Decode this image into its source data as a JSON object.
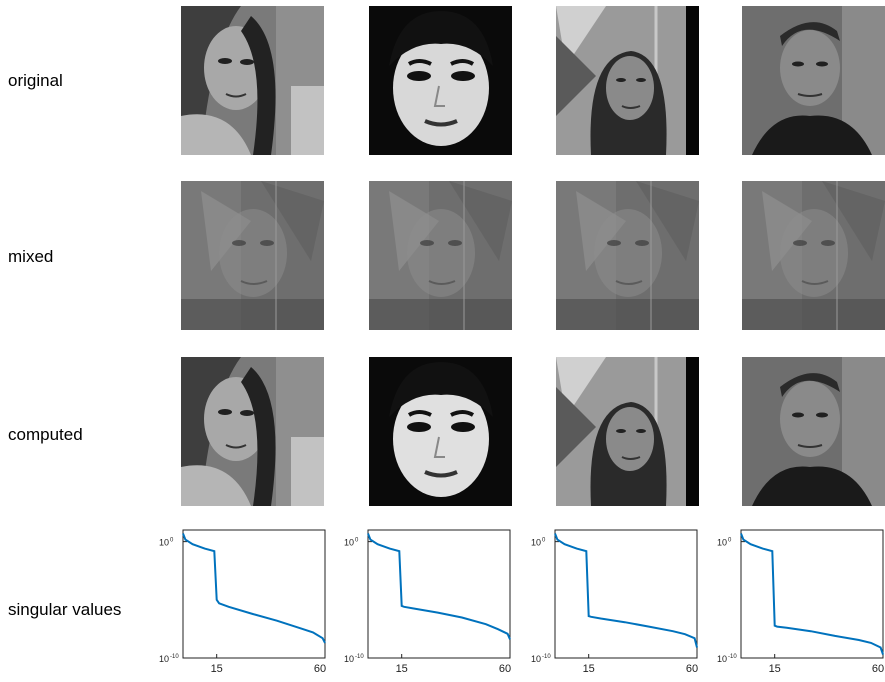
{
  "row_labels": {
    "original": "original",
    "mixed": "mixed",
    "computed": "computed",
    "singular_values": "singular values"
  },
  "images": {
    "original": [
      {
        "subject": "woman with dark hair looking left",
        "tone": "gray"
      },
      {
        "subject": "woman with short dark hair and bangs",
        "tone": "high-contrast"
      },
      {
        "subject": "woman with long dark hair",
        "tone": "gray"
      },
      {
        "subject": "man in dark jacket",
        "tone": "gray"
      }
    ],
    "mixed": [
      {
        "subject": "blend of four faces",
        "tone": "gray"
      },
      {
        "subject": "blend of four faces",
        "tone": "gray"
      },
      {
        "subject": "blend of four faces",
        "tone": "gray"
      },
      {
        "subject": "blend of four faces",
        "tone": "gray"
      }
    ],
    "computed": [
      {
        "subject": "recovered woman with dark hair",
        "tone": "gray"
      },
      {
        "subject": "recovered woman with bangs",
        "tone": "high-contrast"
      },
      {
        "subject": "recovered woman with long hair",
        "tone": "gray"
      },
      {
        "subject": "recovered man",
        "tone": "gray"
      }
    ]
  },
  "chart_data": [
    {
      "type": "line",
      "yscale": "log",
      "grid": false,
      "xlim": [
        1,
        60
      ],
      "ylim": [
        1e-10,
        10
      ],
      "xticks": [
        "15",
        "60"
      ],
      "yticks": [
        "10^0",
        "10^-10"
      ],
      "color": "#0072BD",
      "x": [
        1,
        2,
        5,
        10,
        14,
        15,
        16,
        20,
        30,
        40,
        50,
        55,
        59,
        60
      ],
      "y": [
        5,
        1.5,
        0.6,
        0.25,
        0.15,
        1e-05,
        5e-06,
        2.5e-06,
        6e-07,
        1.6e-07,
        3.5e-08,
        1.6e-08,
        5e-09,
        2e-09
      ]
    },
    {
      "type": "line",
      "yscale": "log",
      "grid": false,
      "xlim": [
        1,
        60
      ],
      "ylim": [
        1e-10,
        10
      ],
      "xticks": [
        "15",
        "60"
      ],
      "yticks": [
        "10^0",
        "10^-10"
      ],
      "color": "#0072BD",
      "x": [
        1,
        2,
        5,
        10,
        14,
        15,
        16,
        20,
        30,
        40,
        50,
        55,
        59,
        60
      ],
      "y": [
        5,
        1.5,
        0.6,
        0.25,
        0.15,
        3e-06,
        2.5e-06,
        1.8e-06,
        8e-07,
        3e-07,
        8e-08,
        3e-08,
        1.2e-08,
        4e-09
      ]
    },
    {
      "type": "line",
      "yscale": "log",
      "grid": false,
      "xlim": [
        1,
        60
      ],
      "ylim": [
        1e-10,
        10
      ],
      "xticks": [
        "15",
        "60"
      ],
      "yticks": [
        "10^0",
        "10^-10"
      ],
      "color": "#0072BD",
      "x": [
        1,
        2,
        5,
        10,
        14,
        15,
        16,
        20,
        30,
        40,
        50,
        55,
        59,
        60
      ],
      "y": [
        5,
        1.5,
        0.6,
        0.25,
        0.15,
        4e-07,
        3.5e-07,
        2.5e-07,
        1.2e-07,
        5e-08,
        2e-08,
        1.1e-08,
        5e-09,
        8e-10
      ]
    },
    {
      "type": "line",
      "yscale": "log",
      "grid": false,
      "xlim": [
        1,
        60
      ],
      "ylim": [
        1e-10,
        10
      ],
      "xticks": [
        "15",
        "60"
      ],
      "yticks": [
        "10^0",
        "10^-10"
      ],
      "color": "#0072BD",
      "x": [
        1,
        2,
        5,
        10,
        14,
        15,
        16,
        20,
        30,
        40,
        50,
        55,
        59,
        60
      ],
      "y": [
        5,
        1.5,
        0.6,
        0.25,
        0.15,
        6e-08,
        5e-08,
        4e-08,
        2e-08,
        8e-09,
        3.5e-09,
        2e-09,
        8e-10,
        2e-10
      ]
    }
  ]
}
